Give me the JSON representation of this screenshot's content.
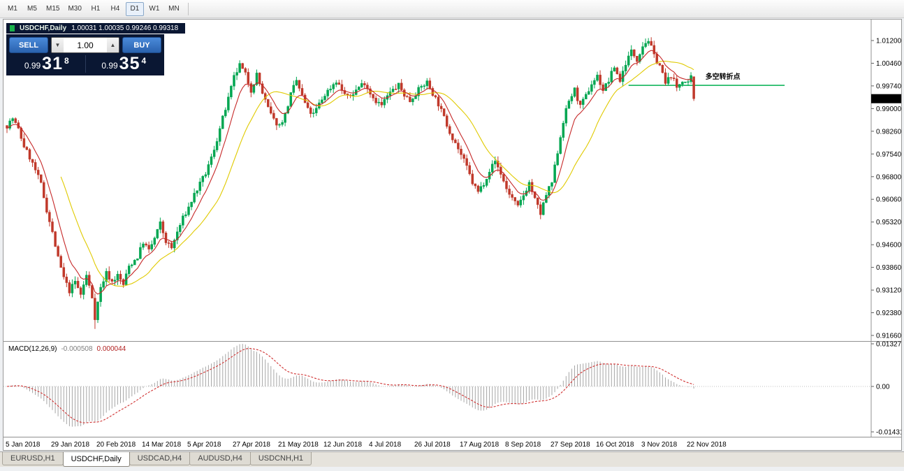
{
  "toolbar": {
    "timeframes": [
      {
        "label": "M1",
        "active": false
      },
      {
        "label": "M5",
        "active": false
      },
      {
        "label": "M15",
        "active": false
      },
      {
        "label": "M30",
        "active": false
      },
      {
        "label": "H1",
        "active": false
      },
      {
        "label": "H4",
        "active": false
      },
      {
        "label": "D1",
        "active": true
      },
      {
        "label": "W1",
        "active": false
      },
      {
        "label": "MN",
        "active": false
      }
    ]
  },
  "window": {
    "title": "USDCHF,Daily",
    "ohlc_text": "1.00031 1.00035 0.99246 0.99318"
  },
  "trade_panel": {
    "sell_label": "SELL",
    "buy_label": "BUY",
    "volume": "1.00",
    "sell_price": {
      "prefix": "0.99",
      "big": "31",
      "sup": "8"
    },
    "buy_price": {
      "prefix": "0.99",
      "big": "35",
      "sup": "4"
    }
  },
  "icons": {
    "volume_down": "▼",
    "volume_up": "▲"
  },
  "tabs": [
    {
      "label": "EURUSD,H1",
      "active": false
    },
    {
      "label": "USDCHF,Daily",
      "active": true
    },
    {
      "label": "USDCAD,H4",
      "active": false
    },
    {
      "label": "AUDUSD,H4",
      "active": false
    },
    {
      "label": "USDCNH,H1",
      "active": false
    }
  ],
  "chart_data": {
    "type": "candlestick",
    "symbol": "USDCHF",
    "timeframe": "Daily",
    "bars_total": 243,
    "noise_seed": 7,
    "colors": {
      "up": "#00a651",
      "down": "#c0392b",
      "ma_fast": "#c62828",
      "ma_slow": "#e0ca00"
    },
    "last_ohlc": {
      "open": 1.00031,
      "high": 1.00035,
      "low": 0.99246,
      "close": 0.99318
    },
    "close_waypoints": [
      [
        0,
        0.9845
      ],
      [
        2,
        0.9868
      ],
      [
        4,
        0.9832
      ],
      [
        6,
        0.9779
      ],
      [
        8,
        0.9742
      ],
      [
        10,
        0.97
      ],
      [
        12,
        0.9655
      ],
      [
        14,
        0.9572
      ],
      [
        16,
        0.9498
      ],
      [
        18,
        0.9415
      ],
      [
        20,
        0.9352
      ],
      [
        22,
        0.931
      ],
      [
        24,
        0.934
      ],
      [
        26,
        0.9298
      ],
      [
        28,
        0.936
      ],
      [
        30,
        0.929
      ],
      [
        31,
        0.9225
      ],
      [
        33,
        0.932
      ],
      [
        35,
        0.9368
      ],
      [
        37,
        0.934
      ],
      [
        39,
        0.936
      ],
      [
        41,
        0.933
      ],
      [
        43,
        0.939
      ],
      [
        46,
        0.942
      ],
      [
        48,
        0.9468
      ],
      [
        50,
        0.944
      ],
      [
        52,
        0.948
      ],
      [
        54,
        0.9528
      ],
      [
        56,
        0.947
      ],
      [
        58,
        0.9448
      ],
      [
        60,
        0.95
      ],
      [
        62,
        0.9545
      ],
      [
        64,
        0.958
      ],
      [
        66,
        0.9622
      ],
      [
        68,
        0.9655
      ],
      [
        70,
        0.969
      ],
      [
        72,
        0.974
      ],
      [
        74,
        0.98
      ],
      [
        76,
        0.9868
      ],
      [
        78,
        0.993
      ],
      [
        80,
        1.0
      ],
      [
        82,
        1.004
      ],
      [
        84,
        1.001
      ],
      [
        86,
        0.996
      ],
      [
        88,
        1.001
      ],
      [
        90,
        0.995
      ],
      [
        92,
        0.99
      ],
      [
        94,
        0.9862
      ],
      [
        96,
        0.9845
      ],
      [
        98,
        0.988
      ],
      [
        100,
        0.9945
      ],
      [
        102,
        0.999
      ],
      [
        104,
        0.994
      ],
      [
        106,
        0.9895
      ],
      [
        108,
        0.988
      ],
      [
        110,
        0.9915
      ],
      [
        112,
        0.9945
      ],
      [
        114,
        0.9968
      ],
      [
        116,
        0.999
      ],
      [
        118,
        0.996
      ],
      [
        120,
        0.9935
      ],
      [
        122,
        0.995
      ],
      [
        124,
        0.997
      ],
      [
        126,
        0.9985
      ],
      [
        128,
        0.995
      ],
      [
        130,
        0.9925
      ],
      [
        132,
        0.991
      ],
      [
        134,
        0.994
      ],
      [
        136,
        0.996
      ],
      [
        138,
        0.9975
      ],
      [
        140,
        0.9945
      ],
      [
        142,
        0.9925
      ],
      [
        144,
        0.995
      ],
      [
        146,
        0.997
      ],
      [
        148,
        0.9985
      ],
      [
        150,
        0.995
      ],
      [
        152,
        0.9915
      ],
      [
        154,
        0.987
      ],
      [
        156,
        0.9825
      ],
      [
        158,
        0.979
      ],
      [
        160,
        0.975
      ],
      [
        162,
        0.971
      ],
      [
        164,
        0.966
      ],
      [
        166,
        0.963
      ],
      [
        168,
        0.966
      ],
      [
        170,
        0.97
      ],
      [
        172,
        0.973
      ],
      [
        174,
        0.969
      ],
      [
        176,
        0.964
      ],
      [
        178,
        0.961
      ],
      [
        180,
        0.958
      ],
      [
        182,
        0.962
      ],
      [
        184,
        0.966
      ],
      [
        186,
        0.9605
      ],
      [
        188,
        0.956
      ],
      [
        190,
        0.962
      ],
      [
        192,
        0.966
      ],
      [
        194,
        0.976
      ],
      [
        196,
        0.986
      ],
      [
        198,
        0.9925
      ],
      [
        200,
        0.996
      ],
      [
        202,
        0.9905
      ],
      [
        204,
        0.994
      ],
      [
        206,
        0.998
      ],
      [
        208,
        1.0005
      ],
      [
        210,
        0.996
      ],
      [
        212,
        0.999
      ],
      [
        214,
        1.0035
      ],
      [
        216,
        0.999
      ],
      [
        218,
        1.0048
      ],
      [
        220,
        1.0085
      ],
      [
        222,
        1.006
      ],
      [
        224,
        1.0105
      ],
      [
        226,
        1.0122
      ],
      [
        228,
        1.007
      ],
      [
        230,
        1.004
      ],
      [
        232,
        0.998
      ],
      [
        234,
        1.0008
      ],
      [
        236,
        0.9968
      ],
      [
        238,
        0.9992
      ],
      [
        240,
        0.9978
      ],
      [
        241,
        1.0
      ],
      [
        242,
        0.9932
      ]
    ],
    "spikes": [
      {
        "bar": 31,
        "low": 0.9187
      },
      {
        "bar": 82,
        "high": 1.0056
      },
      {
        "bar": 188,
        "low": 0.9542
      },
      {
        "bar": 226,
        "high": 1.0128
      }
    ],
    "moving_averages": [
      {
        "name": "fast-ma",
        "type": "ema",
        "period": 8,
        "color": "#c62828"
      },
      {
        "name": "slow-ma",
        "type": "sma",
        "period": 20,
        "color": "#e0ca00"
      }
    ],
    "y_axis": {
      "top_value": 1.012,
      "bottom_value": 0.9166,
      "labels": [
        "1.01200",
        "1.00460",
        "0.99740",
        "0.99000",
        "0.98260",
        "0.97540",
        "0.96800",
        "0.96060",
        "0.95320",
        "0.94600",
        "0.93860",
        "0.93120",
        "0.92380",
        "0.91660"
      ]
    },
    "x_axis": {
      "labels": [
        {
          "bar": 0,
          "text": "5 Jan 2018"
        },
        {
          "bar": 16,
          "text": "29 Jan 2018"
        },
        {
          "bar": 32,
          "text": "20 Feb 2018"
        },
        {
          "bar": 48,
          "text": "14 Mar 2018"
        },
        {
          "bar": 64,
          "text": "5 Apr 2018"
        },
        {
          "bar": 80,
          "text": "27 Apr 2018"
        },
        {
          "bar": 96,
          "text": "21 May 2018"
        },
        {
          "bar": 112,
          "text": "12 Jun 2018"
        },
        {
          "bar": 128,
          "text": "4 Jul 2018"
        },
        {
          "bar": 144,
          "text": "26 Jul 2018"
        },
        {
          "bar": 160,
          "text": "17 Aug 2018"
        },
        {
          "bar": 176,
          "text": "8 Sep 2018"
        },
        {
          "bar": 192,
          "text": "27 Sep 2018"
        },
        {
          "bar": 208,
          "text": "16 Oct 2018"
        },
        {
          "bar": 224,
          "text": "3 Nov 2018"
        },
        {
          "bar": 240,
          "text": "22 Nov 2018"
        }
      ]
    },
    "price_line": {
      "value": "0.99318",
      "price": 0.99318
    },
    "trend_line": {
      "label": "多空转折点",
      "price": 0.9975,
      "from_bar": 219,
      "to_bar": 274,
      "color": "#00b050"
    },
    "macd": {
      "params": "MACD(12,26,9)",
      "fast": 12,
      "slow": 26,
      "signal": 9,
      "value": "-0.000508",
      "signal_value": "0.000044",
      "histogram_color": "#a6a6a6",
      "signal_color": "#d03030",
      "y_axis": {
        "top_value": 0.01327,
        "bottom_value": -0.01431,
        "labels": [
          "0.01327",
          "0.00",
          "-0.01431"
        ]
      }
    }
  }
}
